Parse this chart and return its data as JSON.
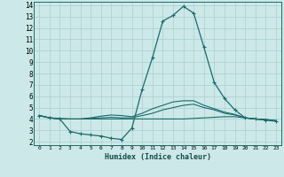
{
  "xlabel": "Humidex (Indice chaleur)",
  "background_color": "#cce8e8",
  "grid_color": "#aacfcf",
  "line_color": "#1a6b6b",
  "xlim": [
    -0.5,
    23.5
  ],
  "ylim": [
    1.7,
    14.3
  ],
  "xticks": [
    0,
    1,
    2,
    3,
    4,
    5,
    6,
    7,
    8,
    9,
    10,
    11,
    12,
    13,
    14,
    15,
    16,
    17,
    18,
    19,
    20,
    21,
    22,
    23
  ],
  "yticks": [
    2,
    3,
    4,
    5,
    6,
    7,
    8,
    9,
    10,
    11,
    12,
    13,
    14
  ],
  "lines": [
    {
      "x": [
        0,
        1,
        2,
        3,
        4,
        5,
        6,
        7,
        8,
        9,
        10,
        11,
        12,
        13,
        14,
        15,
        16,
        17,
        18,
        19,
        20,
        21,
        22,
        23
      ],
      "y": [
        4.3,
        4.1,
        4.0,
        2.9,
        2.7,
        2.6,
        2.5,
        2.3,
        2.2,
        3.2,
        6.6,
        9.4,
        12.6,
        13.1,
        13.9,
        13.3,
        10.3,
        7.2,
        5.8,
        4.8,
        4.1,
        4.0,
        3.9,
        3.8
      ],
      "marker": "+",
      "linewidth": 0.9,
      "markersize": 3.5
    },
    {
      "x": [
        0,
        1,
        2,
        3,
        4,
        5,
        6,
        7,
        8,
        9,
        10,
        11,
        12,
        13,
        14,
        15,
        16,
        17,
        18,
        19,
        20,
        21,
        22,
        23
      ],
      "y": [
        4.3,
        4.1,
        4.05,
        4.0,
        4.0,
        4.0,
        4.0,
        4.0,
        4.0,
        4.0,
        4.0,
        4.0,
        4.0,
        4.0,
        4.0,
        4.05,
        4.1,
        4.15,
        4.2,
        4.2,
        4.1,
        4.0,
        3.95,
        3.85
      ],
      "marker": null,
      "linewidth": 0.8,
      "markersize": 0
    },
    {
      "x": [
        0,
        1,
        2,
        3,
        4,
        5,
        6,
        7,
        8,
        9,
        10,
        11,
        12,
        13,
        14,
        15,
        16,
        17,
        18,
        19,
        20,
        21,
        22,
        23
      ],
      "y": [
        4.3,
        4.1,
        4.0,
        4.0,
        4.0,
        4.05,
        4.1,
        4.15,
        4.1,
        4.1,
        4.3,
        4.5,
        4.8,
        5.0,
        5.2,
        5.3,
        5.0,
        4.8,
        4.5,
        4.35,
        4.1,
        4.0,
        3.95,
        3.85
      ],
      "marker": null,
      "linewidth": 0.8,
      "markersize": 0
    },
    {
      "x": [
        0,
        1,
        2,
        3,
        4,
        5,
        6,
        7,
        8,
        9,
        10,
        11,
        12,
        13,
        14,
        15,
        16,
        17,
        18,
        19,
        20,
        21,
        22,
        23
      ],
      "y": [
        4.3,
        4.1,
        4.0,
        4.0,
        4.0,
        4.1,
        4.25,
        4.35,
        4.3,
        4.2,
        4.5,
        4.9,
        5.2,
        5.5,
        5.6,
        5.6,
        5.2,
        4.9,
        4.6,
        4.4,
        4.1,
        4.0,
        3.95,
        3.85
      ],
      "marker": null,
      "linewidth": 0.8,
      "markersize": 0
    }
  ]
}
